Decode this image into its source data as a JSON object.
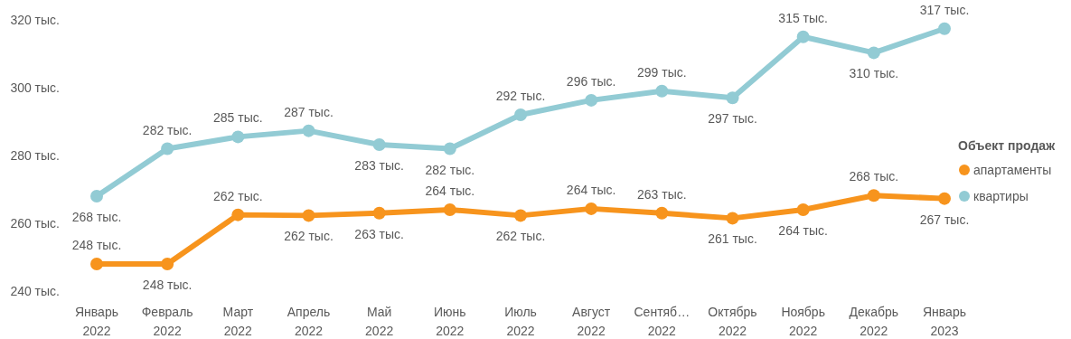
{
  "chart_data": {
    "type": "line",
    "legend_title": "Объект продаж",
    "legend": "right",
    "marker": "circle",
    "grid": false,
    "categories": [
      "Январь 2022",
      "Февраль 2022",
      "Март 2022",
      "Апрель 2022",
      "Май 2022",
      "Июнь 2022",
      "Июль 2022",
      "Август 2022",
      "Сентяб… 2022",
      "Октябрь 2022",
      "Ноябрь 2022",
      "Декабрь 2022",
      "Январь 2023"
    ],
    "ylim": [
      240,
      320
    ],
    "yticks": [
      {
        "value": 240,
        "label": "240 тыс."
      },
      {
        "value": 260,
        "label": "260 тыс."
      },
      {
        "value": 280,
        "label": "280 тыс."
      },
      {
        "value": 300,
        "label": "300 тыс."
      },
      {
        "value": 320,
        "label": "320 тыс."
      }
    ],
    "series": [
      {
        "name": "апартаменты",
        "color": "#f7941d",
        "values": [
          248,
          248,
          262.5,
          262.3,
          263,
          264,
          262.3,
          264.3,
          263,
          261.5,
          264,
          268.2,
          267.3
        ],
        "value_labels": [
          "248 тыс.",
          "248 тыс.",
          "262 тыс.",
          "262 тыс.",
          "263 тыс.",
          "264 тыс.",
          "262 тыс.",
          "264 тыс.",
          "263 тыс.",
          "261 тыс.",
          "264 тыс.",
          "268 тыс.",
          "267 тыс."
        ]
      },
      {
        "name": "квартиры",
        "color": "#92cbd4",
        "values": [
          268,
          282,
          285.5,
          287.3,
          283.2,
          282,
          292,
          296.3,
          299,
          297,
          315,
          310.3,
          317.4
        ],
        "value_labels": [
          "268 тыс.",
          "282 тыс.",
          "285 тыс.",
          "287 тыс.",
          "283 тыс.",
          "282 тыс.",
          "292 тыс.",
          "296 тыс.",
          "299 тыс.",
          "297 тыс.",
          "315 тыс.",
          "310 тыс.",
          "317 тыс."
        ]
      }
    ]
  }
}
